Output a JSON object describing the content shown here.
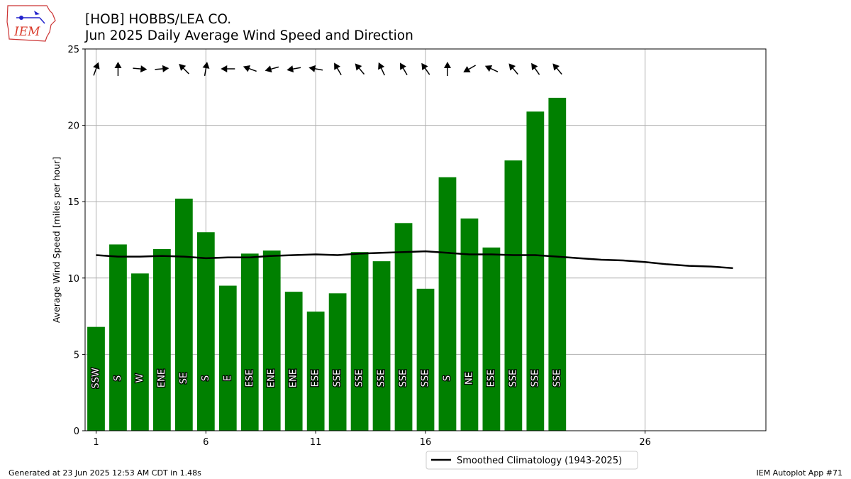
{
  "logo": {
    "text": "IEM"
  },
  "title": {
    "line1": "[HOB] HOBBS/LEA CO.",
    "line2": "Jun 2025 Daily Average Wind Speed and Direction"
  },
  "footer": {
    "left": "Generated at 23 Jun 2025 12:53 AM CDT in 1.48s",
    "right": "IEM Autoplot App #71"
  },
  "colors": {
    "bar": "#008000",
    "climo_line": "#000000",
    "grid": "#b0b0b0",
    "arrow": "#000000"
  },
  "chart_data": {
    "type": "bar",
    "title": "Jun 2025 Daily Average Wind Speed and Direction",
    "ylabel": "Average Wind Speed [miles per hour]",
    "xlabel": "",
    "xlim": [
      0.5,
      31.5
    ],
    "ylim": [
      0,
      25
    ],
    "xticks": [
      1,
      6,
      11,
      16,
      26
    ],
    "yticks": [
      0,
      5,
      10,
      15,
      20,
      25
    ],
    "grid": true,
    "legend": {
      "position": "bottom-center",
      "entries": [
        "Smoothed Climatology (1943-2025)"
      ]
    },
    "days": [
      1,
      2,
      3,
      4,
      5,
      6,
      7,
      8,
      9,
      10,
      11,
      12,
      13,
      14,
      15,
      16,
      17,
      18,
      19,
      20,
      21,
      22
    ],
    "speeds": [
      6.8,
      12.2,
      10.3,
      11.9,
      15.2,
      13.0,
      9.5,
      11.6,
      11.8,
      9.1,
      7.8,
      9.0,
      11.7,
      11.1,
      13.6,
      9.3,
      16.6,
      13.9,
      12.0,
      17.7,
      20.9,
      21.8
    ],
    "directions": [
      "SSW",
      "S",
      "W",
      "ENE",
      "SE",
      "S",
      "E",
      "ESE",
      "ENE",
      "ENE",
      "ESE",
      "SSE",
      "SSE",
      "SSE",
      "SSE",
      "SSE",
      "S",
      "NE",
      "ESE",
      "SSE",
      "SSE",
      "SSE"
    ],
    "arrow_angles_deg": [
      70,
      90,
      -5,
      5,
      135,
      80,
      180,
      160,
      195,
      190,
      170,
      120,
      130,
      115,
      120,
      125,
      90,
      210,
      155,
      130,
      125,
      130
    ],
    "climatology": {
      "name": "Smoothed Climatology (1943-2025)",
      "x": [
        1,
        2,
        3,
        4,
        5,
        6,
        7,
        8,
        9,
        10,
        11,
        12,
        13,
        14,
        15,
        16,
        17,
        18,
        19,
        20,
        21,
        22,
        23,
        24,
        25,
        26,
        27,
        28,
        29,
        30
      ],
      "y": [
        11.5,
        11.4,
        11.4,
        11.45,
        11.4,
        11.3,
        11.35,
        11.35,
        11.45,
        11.5,
        11.55,
        11.5,
        11.6,
        11.65,
        11.7,
        11.75,
        11.65,
        11.55,
        11.55,
        11.5,
        11.5,
        11.4,
        11.3,
        11.2,
        11.15,
        11.05,
        10.9,
        10.8,
        10.75,
        10.65
      ]
    }
  }
}
